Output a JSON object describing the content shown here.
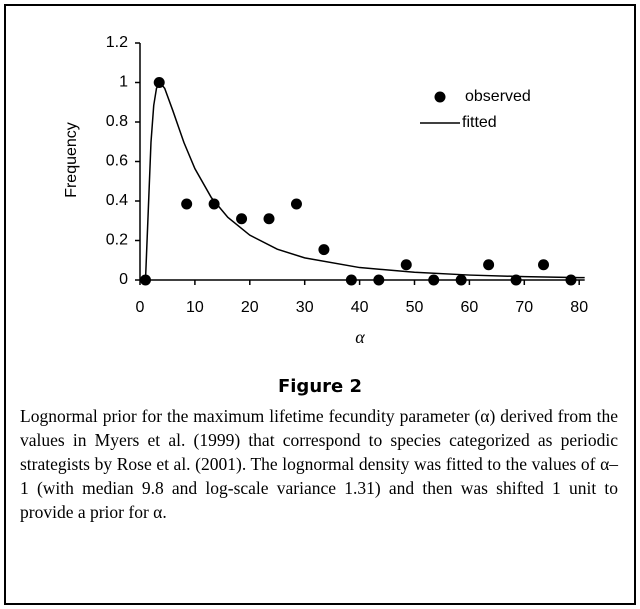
{
  "chart_data": {
    "type": "scatter",
    "x_label": "α",
    "y_label": "Frequency",
    "xlim": [
      0,
      81
    ],
    "ylim": [
      0,
      1.2
    ],
    "xticks": [
      0,
      10,
      20,
      30,
      40,
      50,
      60,
      70,
      80
    ],
    "yticks": [
      0,
      0.2,
      0.4,
      0.6,
      0.8,
      1,
      1.2
    ],
    "series": [
      {
        "name": "observed",
        "type": "scatter",
        "color": "#000000",
        "x": [
          1,
          3.5,
          8.5,
          13.5,
          18.5,
          23.5,
          28.5,
          33.5,
          38.5,
          43.5,
          48.5,
          53.5,
          58.5,
          63.5,
          68.5,
          73.5,
          78.5
        ],
        "values": [
          0,
          1,
          0.385,
          0.385,
          0.31,
          0.31,
          0.385,
          0.154,
          0,
          0,
          0.077,
          0,
          0,
          0.077,
          0,
          0.077,
          0
        ]
      },
      {
        "name": "fitted",
        "type": "line",
        "color": "#000000",
        "x": [
          1,
          1.5,
          2,
          2.5,
          3,
          3.64,
          4.5,
          6,
          8,
          10,
          13,
          16,
          20,
          25,
          30,
          40,
          50,
          60,
          70,
          80,
          81
        ],
        "values": [
          0,
          0.347,
          0.697,
          0.884,
          0.97,
          1,
          0.97,
          0.856,
          0.696,
          0.564,
          0.417,
          0.317,
          0.227,
          0.156,
          0.112,
          0.063,
          0.039,
          0.025,
          0.017,
          0.012,
          0.012
        ]
      }
    ],
    "figure_label": "Figure 2",
    "caption": "Lognormal prior for the maximum lifetime fecundity parameter (α) derived from the values in Myers et al. (1999) that correspond to species categorized as periodic strategists by Rose et al. (2001). The lognormal density was fitted to the values of α–1 (with median 9.8 and log-scale variance 1.31) and then was shifted 1 unit to provide a prior for α."
  }
}
